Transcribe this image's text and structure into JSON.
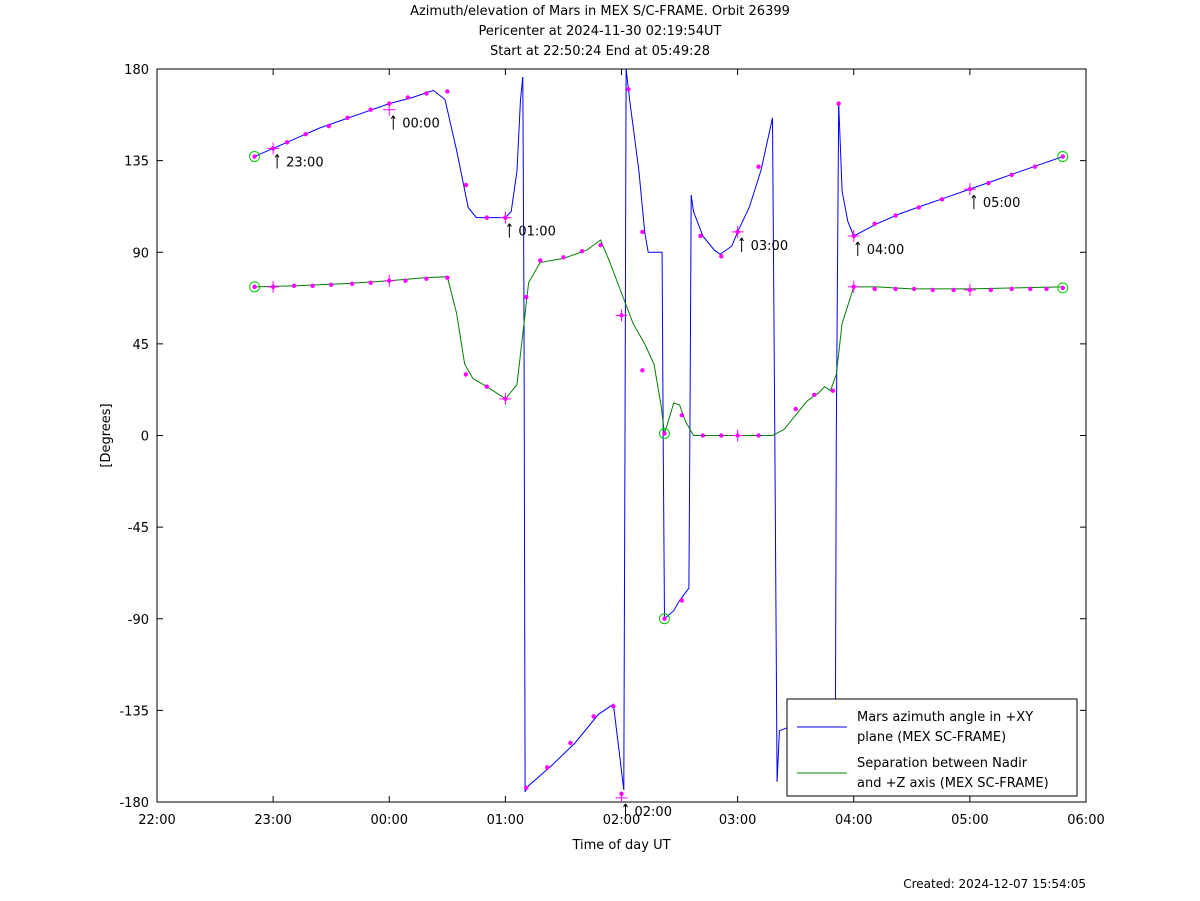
{
  "header": {
    "title_line1": "Azimuth/elevation of Mars in MEX S/C-FRAME.  Orbit 26399",
    "title_line2": "Pericenter at 2024-11-30 02:19:54UT",
    "title_line3": "Start at 22:50:24 End at 05:49:28"
  },
  "footer": {
    "created": "Created: 2024-12-07 15:54:05"
  },
  "chart_data": {
    "type": "line",
    "title": "Azimuth/elevation of Mars in MEX S/C-FRAME.  Orbit 26399",
    "xlabel": "Time of day UT",
    "ylabel": "[Degrees]",
    "xlim": [
      -2,
      6
    ],
    "ylim": [
      -180,
      180
    ],
    "x_ticks": [
      -2,
      -1,
      0,
      1,
      2,
      3,
      4,
      5,
      6
    ],
    "x_tick_labels": [
      "22:00",
      "23:00",
      "00:00",
      "01:00",
      "02:00",
      "03:00",
      "04:00",
      "05:00",
      "06:00"
    ],
    "y_ticks": [
      180,
      135,
      90,
      45,
      0,
      -45,
      -90,
      -135,
      -180
    ],
    "y_tick_labels": [
      "180",
      "135",
      "90",
      "45",
      "0",
      "-45",
      "-90",
      "-135",
      "-180"
    ],
    "grid": false,
    "legend_position": "bottom-right",
    "series": [
      {
        "name": "Mars azimuth angle in +XY plane (MEX SC-FRAME)",
        "legend_lines": [
          "Mars azimuth angle in +XY",
          "plane (MEX SC-FRAME)"
        ],
        "color": "#0000ff",
        "segments": [
          [
            [
              -1.16,
              137
            ],
            [
              -1,
              141
            ],
            [
              -0.8,
              146
            ],
            [
              -0.6,
              151
            ],
            [
              -0.4,
              155
            ],
            [
              -0.2,
              159
            ],
            [
              0,
              163
            ],
            [
              0.2,
              166
            ],
            [
              0.38,
              169.5
            ],
            [
              0.48,
              165
            ],
            [
              0.58,
              140
            ],
            [
              0.68,
              112
            ],
            [
              0.75,
              107
            ],
            [
              1,
              107
            ],
            [
              1.05,
              110
            ],
            [
              1.1,
              130
            ],
            [
              1.13,
              165
            ],
            [
              1.15,
              176
            ]
          ],
          [
            [
              1.15,
              176
            ],
            [
              1.16,
              60
            ],
            [
              1.17,
              -175
            ]
          ],
          [
            [
              1.17,
              -175
            ],
            [
              1.2,
              -172
            ],
            [
              1.4,
              -162
            ],
            [
              1.6,
              -151
            ],
            [
              1.8,
              -137
            ],
            [
              1.93,
              -132
            ],
            [
              2.02,
              -174
            ]
          ],
          [
            [
              2.02,
              -174
            ],
            [
              2.03,
              0
            ],
            [
              2.04,
              180
            ]
          ],
          [
            [
              2.04,
              180
            ],
            [
              2.07,
              165
            ],
            [
              2.15,
              130
            ],
            [
              2.2,
              100
            ],
            [
              2.23,
              90
            ],
            [
              2.35,
              90
            ]
          ],
          [
            [
              2.35,
              90
            ],
            [
              2.36,
              -10
            ],
            [
              2.37,
              -90
            ]
          ],
          [
            [
              2.37,
              -90
            ],
            [
              2.45,
              -86
            ],
            [
              2.5,
              -81
            ],
            [
              2.58,
              -75
            ],
            [
              2.59,
              10
            ],
            [
              2.6,
              118
            ]
          ],
          [
            [
              2.6,
              118
            ],
            [
              2.62,
              110
            ],
            [
              2.7,
              98
            ],
            [
              2.8,
              91
            ],
            [
              2.85,
              89
            ],
            [
              2.95,
              93
            ],
            [
              3,
              100
            ],
            [
              3.1,
              112
            ],
            [
              3.2,
              130
            ],
            [
              3.3,
              156
            ]
          ],
          [
            [
              3.3,
              156
            ],
            [
              3.32,
              0
            ],
            [
              3.34,
              -170
            ]
          ],
          [
            [
              3.34,
              -170
            ],
            [
              3.36,
              -145
            ],
            [
              3.45,
              -143
            ],
            [
              3.6,
              -142
            ],
            [
              3.75,
              -142
            ],
            [
              3.8,
              -143
            ],
            [
              3.84,
              -176
            ],
            [
              3.85,
              0
            ],
            [
              3.87,
              163
            ]
          ],
          [
            [
              3.87,
              163
            ],
            [
              3.9,
              120
            ],
            [
              3.95,
              105
            ],
            [
              4,
              98
            ],
            [
              4.2,
              104
            ],
            [
              4.4,
              109
            ],
            [
              4.6,
              113
            ],
            [
              4.8,
              117
            ],
            [
              5,
              121
            ],
            [
              5.2,
              125
            ],
            [
              5.4,
              129
            ],
            [
              5.6,
              133
            ],
            [
              5.8,
              137
            ]
          ]
        ],
        "markers": [
          [
            -1.16,
            137
          ],
          [
            -1,
            141
          ],
          [
            -0.88,
            144
          ],
          [
            -0.72,
            148
          ],
          [
            -0.52,
            152
          ],
          [
            -0.36,
            156
          ],
          [
            -0.16,
            160
          ],
          [
            0,
            163
          ],
          [
            0.16,
            166
          ],
          [
            0.32,
            168
          ],
          [
            0.5,
            169
          ],
          [
            0.66,
            123
          ],
          [
            0.84,
            107
          ],
          [
            1,
            107
          ],
          [
            1.18,
            -173
          ],
          [
            1.36,
            -163
          ],
          [
            1.56,
            -151
          ],
          [
            1.76,
            -138
          ],
          [
            1.93,
            -133
          ],
          [
            2,
            -176
          ],
          [
            2.06,
            170
          ],
          [
            2.18,
            100
          ],
          [
            2.37,
            -90
          ],
          [
            2.52,
            -81
          ],
          [
            2.68,
            98
          ],
          [
            2.86,
            88
          ],
          [
            3,
            100
          ],
          [
            3.18,
            132
          ],
          [
            3.87,
            163
          ],
          [
            4,
            98
          ],
          [
            4.18,
            104
          ],
          [
            4.36,
            108
          ],
          [
            4.56,
            112
          ],
          [
            4.76,
            116
          ],
          [
            5,
            121
          ],
          [
            5.16,
            124
          ],
          [
            5.36,
            128
          ],
          [
            5.56,
            132
          ],
          [
            5.8,
            137
          ]
        ],
        "ticks": [
          [
            -1,
            141
          ],
          [
            0,
            160
          ],
          [
            1,
            107
          ],
          [
            2,
            -178
          ],
          [
            3,
            100
          ],
          [
            4,
            98
          ],
          [
            5,
            121
          ]
        ],
        "circles": [
          [
            -1.16,
            137
          ],
          [
            2.37,
            -90
          ],
          [
            5.8,
            137
          ]
        ]
      },
      {
        "name": "Separation between Nadir and +Z axis (MEX SC-FRAME)",
        "legend_lines": [
          "Separation between Nadir",
          "and +Z axis (MEX SC-FRAME)"
        ],
        "color": "#008000",
        "segments": [
          [
            [
              -1.16,
              73
            ],
            [
              -0.8,
              73.5
            ],
            [
              -0.4,
              74.5
            ],
            [
              0,
              76
            ],
            [
              0.3,
              77.5
            ],
            [
              0.5,
              78
            ],
            [
              0.58,
              60
            ],
            [
              0.65,
              35
            ],
            [
              0.72,
              28
            ],
            [
              0.84,
              24
            ],
            [
              1,
              18
            ],
            [
              1.1,
              25
            ],
            [
              1.15,
              50
            ],
            [
              1.2,
              75
            ],
            [
              1.3,
              85
            ],
            [
              1.5,
              87
            ],
            [
              1.7,
              91
            ],
            [
              1.82,
              96
            ],
            [
              1.9,
              85
            ],
            [
              2,
              70
            ],
            [
              2.1,
              55
            ],
            [
              2.2,
              45
            ],
            [
              2.28,
              35
            ],
            [
              2.34,
              15
            ],
            [
              2.37,
              1
            ],
            [
              2.45,
              16
            ],
            [
              2.5,
              15
            ],
            [
              2.55,
              7
            ],
            [
              2.62,
              0
            ],
            [
              3,
              0
            ],
            [
              3.3,
              0
            ],
            [
              3.4,
              3
            ],
            [
              3.5,
              10
            ],
            [
              3.6,
              17
            ],
            [
              3.7,
              21
            ],
            [
              3.75,
              24
            ],
            [
              3.8,
              22
            ],
            [
              3.85,
              30
            ],
            [
              3.9,
              55
            ],
            [
              4,
              73
            ],
            [
              4.2,
              73
            ],
            [
              4.5,
              72
            ],
            [
              5,
              72
            ],
            [
              5.4,
              72.5
            ],
            [
              5.8,
              73
            ]
          ]
        ],
        "markers": [
          [
            -1.16,
            73
          ],
          [
            -1,
            73
          ],
          [
            -0.82,
            73.5
          ],
          [
            -0.66,
            73.5
          ],
          [
            -0.5,
            74
          ],
          [
            -0.32,
            74.5
          ],
          [
            -0.16,
            75
          ],
          [
            0,
            76
          ],
          [
            0.14,
            76
          ],
          [
            0.32,
            77
          ],
          [
            0.5,
            77.5
          ],
          [
            0.66,
            30
          ],
          [
            0.84,
            24
          ],
          [
            1,
            18
          ],
          [
            1.18,
            68
          ],
          [
            1.3,
            86
          ],
          [
            1.5,
            87.5
          ],
          [
            1.66,
            90.5
          ],
          [
            1.82,
            93.5
          ],
          [
            2,
            59
          ],
          [
            2.18,
            32
          ],
          [
            2.37,
            1
          ],
          [
            2.52,
            10
          ],
          [
            2.7,
            0
          ],
          [
            2.86,
            0
          ],
          [
            3,
            0
          ],
          [
            3.18,
            0
          ],
          [
            3.5,
            13
          ],
          [
            3.66,
            20
          ],
          [
            3.82,
            22
          ],
          [
            4,
            73
          ],
          [
            4.18,
            72
          ],
          [
            4.36,
            72
          ],
          [
            4.52,
            72
          ],
          [
            4.68,
            71.5
          ],
          [
            4.86,
            71.5
          ],
          [
            5,
            71.5
          ],
          [
            5.18,
            71.5
          ],
          [
            5.36,
            72
          ],
          [
            5.52,
            72
          ],
          [
            5.66,
            72
          ],
          [
            5.8,
            72.5
          ]
        ],
        "ticks": [
          [
            -1,
            73
          ],
          [
            0,
            76
          ],
          [
            1,
            18
          ],
          [
            2,
            59
          ],
          [
            3,
            0
          ],
          [
            4,
            73
          ],
          [
            5,
            71.5
          ]
        ],
        "circles": [
          [
            -1.16,
            73
          ],
          [
            2.37,
            1
          ],
          [
            5.8,
            72.5
          ]
        ]
      }
    ],
    "annotations": [
      {
        "text": "23:00",
        "x": -1,
        "y": 141
      },
      {
        "text": "00:00",
        "x": 0,
        "y": 160
      },
      {
        "text": "01:00",
        "x": 1,
        "y": 107
      },
      {
        "text": "02:00",
        "x": 2,
        "y": -178
      },
      {
        "text": "03:00",
        "x": 3,
        "y": 100
      },
      {
        "text": "04:00",
        "x": 4,
        "y": 98
      },
      {
        "text": "05:00",
        "x": 5,
        "y": 121
      }
    ]
  }
}
